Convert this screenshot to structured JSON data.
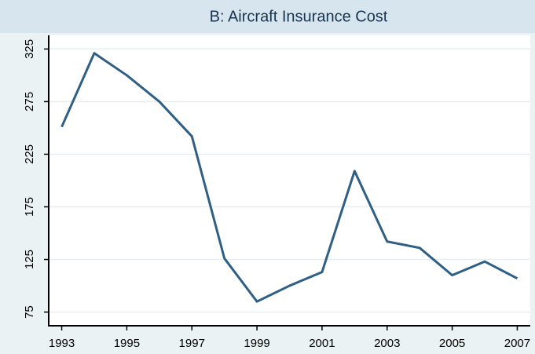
{
  "chart_data": {
    "type": "line",
    "title": "B: Aircraft Insurance Cost",
    "x": [
      1993,
      1994,
      1995,
      1996,
      1997,
      1998,
      1999,
      2000,
      2001,
      2002,
      2003,
      2004,
      2005,
      2006,
      2007
    ],
    "series": [
      {
        "name": "Aircraft Insurance Cost",
        "color": "#2f5f85",
        "values": [
          251,
          321,
          300,
          275,
          242,
          126,
          85,
          100,
          113,
          209,
          142,
          136,
          110,
          123,
          107
        ]
      }
    ],
    "xlim": [
      1992.6,
      2007.4
    ],
    "xticks": [
      1993,
      1995,
      1997,
      1999,
      2001,
      2003,
      2005,
      2007
    ],
    "ylim": [
      62,
      338
    ],
    "yticks": [
      75,
      125,
      175,
      225,
      275,
      325
    ],
    "grid": true
  }
}
